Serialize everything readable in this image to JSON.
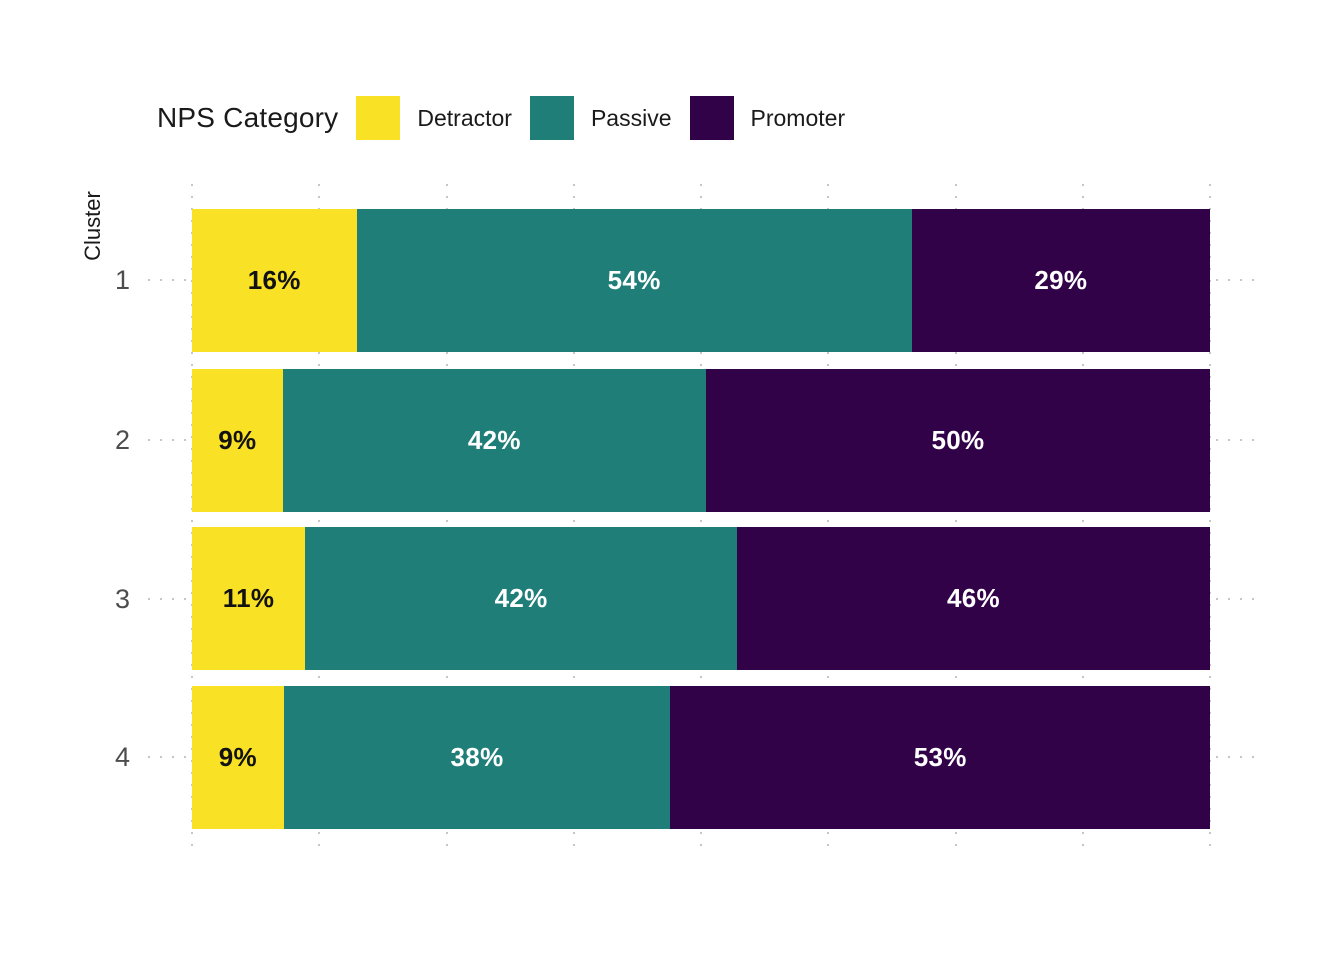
{
  "legend": {
    "title": "NPS Category",
    "items": [
      {
        "label": "Detractor",
        "color": "#F9E125"
      },
      {
        "label": "Passive",
        "color": "#207E79"
      },
      {
        "label": "Promoter",
        "color": "#310248"
      }
    ]
  },
  "y_axis": {
    "title": "Cluster",
    "categories": [
      "1",
      "2",
      "3",
      "4"
    ]
  },
  "chart_data": {
    "type": "bar",
    "orientation": "horizontal",
    "stacked": true,
    "stacked_100_percent": true,
    "title": "",
    "xlabel": "",
    "ylabel": "Cluster",
    "categories": [
      "1",
      "2",
      "3",
      "4"
    ],
    "series": [
      {
        "name": "Detractor",
        "color": "#F9E125",
        "label_text_color": "#121212",
        "values": [
          16,
          9,
          11,
          9
        ],
        "labels": [
          "16%",
          "9%",
          "11%",
          "9%"
        ]
      },
      {
        "name": "Passive",
        "color": "#207E79",
        "label_text_color": "#FFFFFF",
        "values": [
          54,
          42,
          42,
          38
        ],
        "labels": [
          "54%",
          "42%",
          "42%",
          "38%"
        ]
      },
      {
        "name": "Promoter",
        "color": "#310248",
        "label_text_color": "#FFFFFF",
        "values": [
          29,
          50,
          46,
          53
        ],
        "labels": [
          "29%",
          "50%",
          "46%",
          "53%"
        ]
      }
    ],
    "x_range_percent": [
      0,
      100
    ],
    "gridlines_percent": [
      0,
      12.5,
      25,
      37.5,
      50,
      62.5,
      75,
      87.5,
      100
    ],
    "grid_style": "dotted",
    "legend_position": "top"
  },
  "colors": {
    "background": "#FFFFFF",
    "grid": "#C6C6C6",
    "axis_text": "#4D4D4D",
    "title_text": "#1A1A1A"
  }
}
